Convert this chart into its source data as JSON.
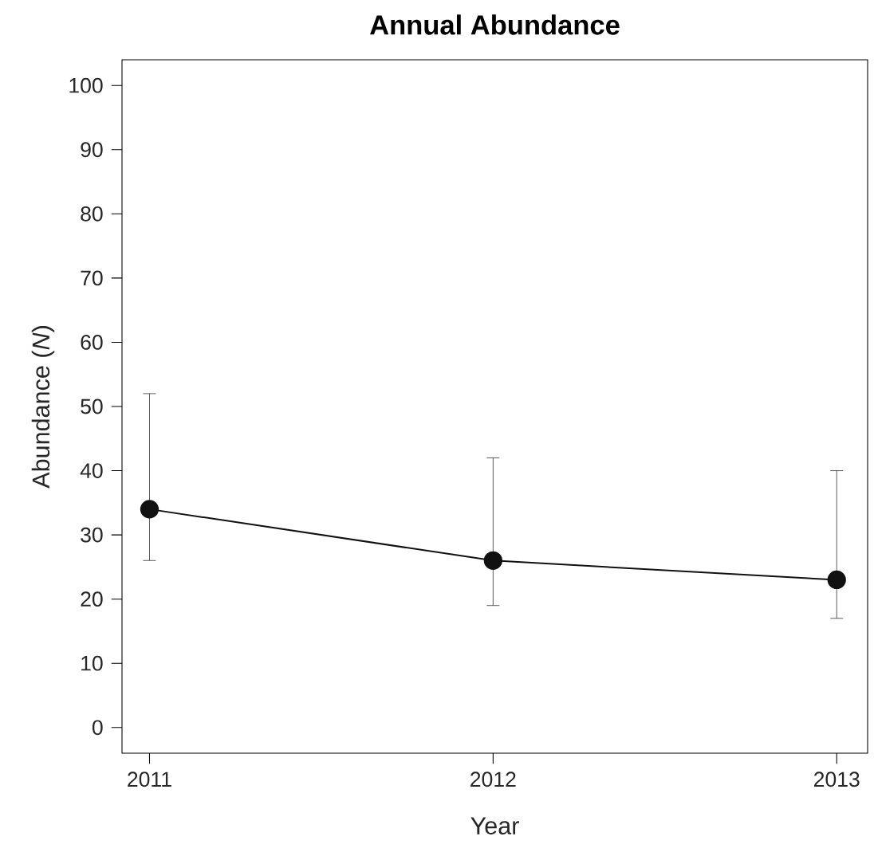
{
  "chart_data": {
    "type": "line",
    "title": "Annual Abundance",
    "xlabel": "Year",
    "ylabel": "Abundance (*N*)",
    "x": [
      2011,
      2012,
      2013
    ],
    "series": [
      {
        "color": "#111111",
        "values": [
          34,
          26,
          23
        ],
        "errors": [
          [
            26,
            52
          ],
          [
            19,
            42
          ],
          [
            17,
            40
          ]
        ]
      }
    ],
    "xlim": [
      2010.92,
      2013.09
    ],
    "xticks": [
      2011,
      2012,
      2013
    ],
    "ylim": [
      -4,
      104
    ],
    "yticks": [
      0,
      10,
      20,
      30,
      40,
      50,
      60,
      70,
      80,
      90,
      100
    ],
    "grid": false,
    "marker": "circle",
    "line_style": "solid"
  }
}
